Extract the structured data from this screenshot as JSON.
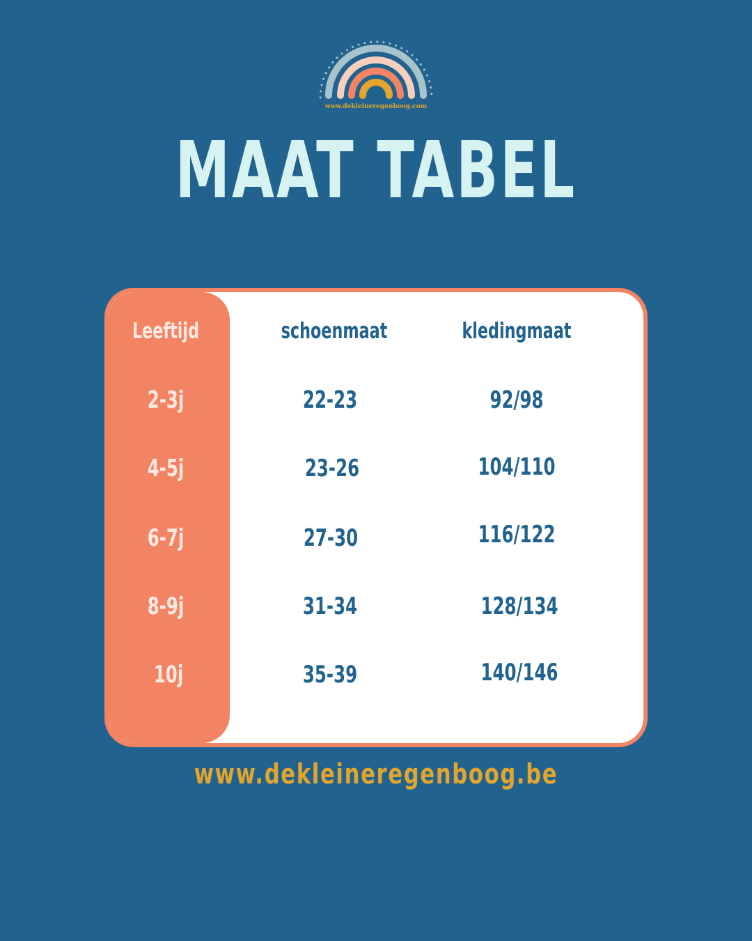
{
  "logo": {
    "text": "www.dekleineregenboog.com",
    "colors": [
      "#a7c3cb",
      "#f7cfbd",
      "#f28464",
      "#e3a52e"
    ]
  },
  "title": "MAAT TABEL",
  "table": {
    "headers": [
      "Leeftijd",
      "schoenmaat",
      "kledingmaat"
    ],
    "rows": [
      [
        "2-3j",
        "22-23",
        "92/98"
      ],
      [
        "4-5j",
        "23-26",
        "104/110"
      ],
      [
        "6-7j",
        "27-30",
        "116/122"
      ],
      [
        "8-9j",
        "31-34",
        "128/134"
      ],
      [
        "10j",
        "35-39",
        "140/146"
      ]
    ]
  },
  "footer": "www.dekleineregenboog.be",
  "colors": {
    "background": "#21628e",
    "accent": "#f28464",
    "text": "#21628e",
    "footer": "#e3a52e",
    "title": "#d6f3f1"
  }
}
